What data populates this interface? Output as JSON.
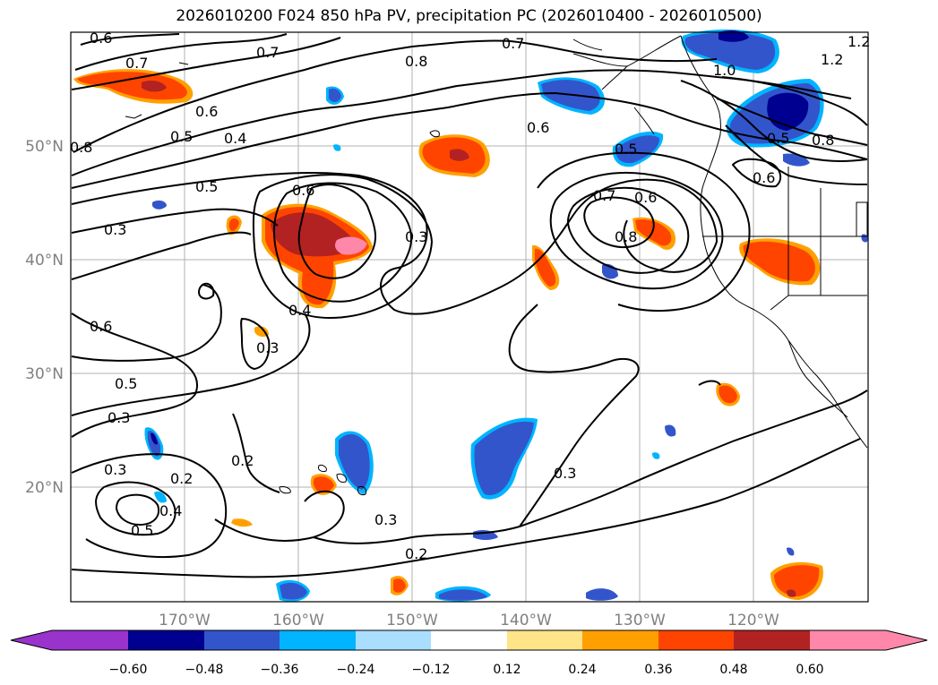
{
  "title": "2026010200 F024 850 hPa PV, precipitation PC (2026010400 - 2026010500)",
  "map": {
    "lon_ticks": [
      "170°W",
      "160°W",
      "150°W",
      "140°W",
      "130°W",
      "120°W"
    ],
    "lat_ticks": [
      "50°N",
      "40°N",
      "30°N",
      "20°N"
    ]
  },
  "contour_labels": [
    "0.6",
    "0.7",
    "0.7",
    "0.8",
    "0.7",
    "0.6",
    "0.8",
    "0.5",
    "0.4",
    "0.5",
    "0.3",
    "0.6",
    "0.3",
    "0.4",
    "0.3",
    "0.6",
    "0.5",
    "0.3",
    "0.3",
    "0.2",
    "0.4",
    "0.5",
    "0.2",
    "0.3",
    "0.2",
    "0.3",
    "0.6",
    "0.7",
    "0.6",
    "0.5",
    "0.8",
    "1.0",
    "1.2",
    "0.8",
    "0.5",
    "0.6",
    "1.2"
  ],
  "colorbar": {
    "tick_labels": [
      "−0.60",
      "−0.48",
      "−0.36",
      "−0.24",
      "−0.12",
      "0.12",
      "0.24",
      "0.36",
      "0.48",
      "0.60"
    ],
    "colors": [
      "#9933cc",
      "#000090",
      "#3355cc",
      "#00b4ff",
      "#aadeff",
      "#ffffff",
      "#ffe488",
      "#ffa000",
      "#ff4400",
      "#b22222",
      "#ff88aa"
    ]
  }
}
